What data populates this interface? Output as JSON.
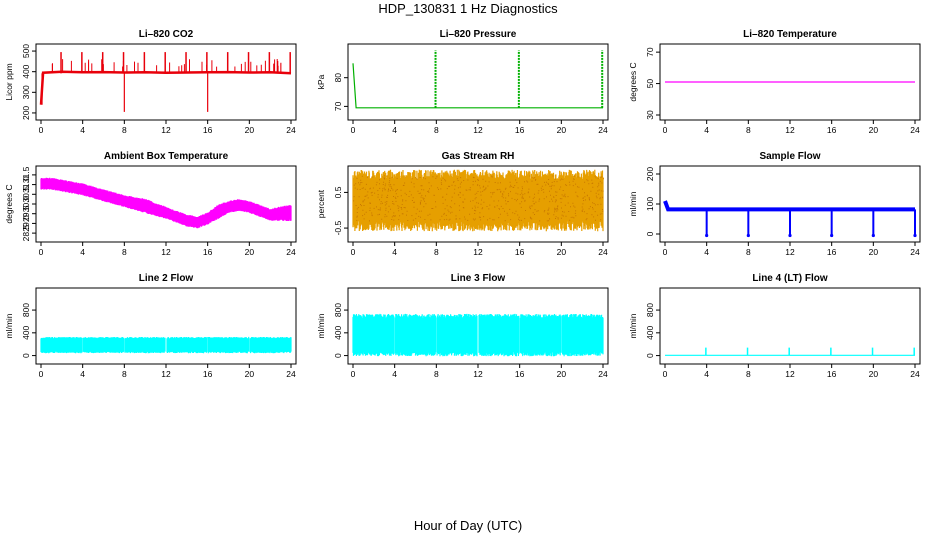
{
  "title": "HDP_130831  1 Hz Diagnostics",
  "xlabel": "Hour of Day (UTC)",
  "chart_data": [
    {
      "type": "line",
      "title": "Li–820 CO2",
      "ylabel": "Licor ppm",
      "color": "#e8000b",
      "xlim": [
        0,
        24
      ],
      "ylim": [
        190,
        510
      ],
      "xticks": [
        "0",
        "4",
        "8",
        "12",
        "16",
        "20",
        "24"
      ],
      "yticks": [
        "200",
        "300",
        "400",
        "500"
      ],
      "series": [
        {
          "x": [
            0,
            0.2,
            2,
            4,
            6,
            8,
            10,
            12,
            14,
            16,
            18,
            20,
            22,
            24
          ],
          "y": [
            240,
            395,
            400,
            397,
            398,
            396,
            397,
            395,
            396,
            397,
            398,
            396,
            397,
            392
          ]
        }
      ],
      "spikes_up": [
        2,
        4,
        6,
        8,
        10,
        12,
        14,
        16,
        18,
        20,
        22,
        24
      ],
      "spikes_down": [
        0.1,
        8,
        16
      ]
    },
    {
      "type": "line",
      "title": "Li–820 Pressure",
      "ylabel": "kPa",
      "color": "#00b000",
      "xlim": [
        0,
        24
      ],
      "ylim": [
        67,
        90
      ],
      "xticks": [
        "0",
        "4",
        "8",
        "12",
        "16",
        "20",
        "24"
      ],
      "yticks": [
        "70",
        "80"
      ],
      "series": [
        {
          "x": [
            0,
            0.3,
            24
          ],
          "y": [
            85,
            69.5,
            69.5
          ]
        }
      ],
      "spikes_up": [
        8,
        16,
        24
      ]
    },
    {
      "type": "line",
      "title": "Li–820 Temperature",
      "ylabel": "degrees C",
      "color": "#ff00ff",
      "xlim": [
        0,
        24
      ],
      "ylim": [
        30,
        72
      ],
      "xticks": [
        "0",
        "4",
        "8",
        "12",
        "16",
        "20",
        "24"
      ],
      "yticks": [
        "30",
        "50",
        "70"
      ],
      "series": [
        {
          "x": [
            0,
            24
          ],
          "y": [
            51,
            51
          ]
        }
      ]
    },
    {
      "type": "area",
      "title": "Ambient Box Temperature",
      "ylabel": "degrees C",
      "color": "#ff00ff",
      "xlim": [
        0,
        24
      ],
      "ylim": [
        28.3,
        31.7
      ],
      "xticks": [
        "0",
        "4",
        "8",
        "12",
        "16",
        "20",
        "24"
      ],
      "yticks": [
        "28.5",
        "29.0",
        "29.5",
        "30.0",
        "30.5",
        "31.0",
        "31.5"
      ],
      "series": [
        {
          "x": [
            0,
            1,
            2,
            4,
            6,
            8,
            10,
            12,
            14,
            15,
            16,
            17,
            18,
            19,
            20,
            22,
            24
          ],
          "upper": [
            31.3,
            31.3,
            31.2,
            31.0,
            30.7,
            30.4,
            30.2,
            29.8,
            29.4,
            29.3,
            29.5,
            29.9,
            30.1,
            30.2,
            30.1,
            29.7,
            29.9
          ],
          "lower": [
            30.8,
            30.8,
            30.7,
            30.5,
            30.2,
            29.9,
            29.6,
            29.3,
            28.9,
            28.8,
            29.0,
            29.3,
            29.6,
            29.7,
            29.6,
            29.2,
            29.2
          ]
        }
      ]
    },
    {
      "type": "area",
      "title": "Gas Stream RH",
      "ylabel": "percent",
      "color": "#e69f00",
      "xlim": [
        0,
        24
      ],
      "ylim": [
        -0.75,
        1.1
      ],
      "xticks": [
        "0",
        "4",
        "8",
        "12",
        "16",
        "20",
        "24"
      ],
      "yticks": [
        "-0.5",
        "0.5"
      ],
      "series": [
        {
          "x": [
            0,
            24
          ],
          "upper": [
            0.85,
            0.85
          ],
          "lower": [
            -0.3,
            -0.3
          ]
        }
      ]
    },
    {
      "type": "line",
      "title": "Sample Flow",
      "ylabel": "ml/min",
      "color": "#0000ff",
      "xlim": [
        0,
        24
      ],
      "ylim": [
        -10,
        210
      ],
      "xticks": [
        "0",
        "4",
        "8",
        "12",
        "16",
        "20",
        "24"
      ],
      "yticks": [
        "0",
        "100",
        "200"
      ],
      "series": [
        {
          "x": [
            0,
            0.3,
            24
          ],
          "y": [
            110,
            82,
            82
          ]
        }
      ],
      "spikes_down": [
        4,
        8,
        12,
        16,
        20,
        24
      ]
    },
    {
      "type": "area",
      "title": "Line 2 Flow",
      "ylabel": "ml/min",
      "color": "#00ffff",
      "xlim": [
        0,
        24
      ],
      "ylim": [
        -60,
        1100
      ],
      "xticks": [
        "0",
        "4",
        "8",
        "12",
        "16",
        "20",
        "24"
      ],
      "yticks": [
        "0",
        "400",
        "800"
      ],
      "series": [
        {
          "x": [
            0,
            24
          ],
          "upper": [
            300,
            300
          ],
          "lower": [
            70,
            70
          ]
        }
      ],
      "gaps": [
        4,
        8,
        12,
        16,
        20
      ]
    },
    {
      "type": "area",
      "title": "Line 3 Flow",
      "ylabel": "ml/min",
      "color": "#00ffff",
      "xlim": [
        0,
        24
      ],
      "ylim": [
        -60,
        1100
      ],
      "xticks": [
        "0",
        "4",
        "8",
        "12",
        "16",
        "20",
        "24"
      ],
      "yticks": [
        "0",
        "400",
        "800"
      ],
      "series": [
        {
          "x": [
            0,
            24
          ],
          "upper": [
            660,
            660
          ],
          "lower": [
            60,
            60
          ]
        }
      ],
      "gaps": [
        4,
        8,
        12,
        16,
        20
      ]
    },
    {
      "type": "line",
      "title": "Line 4 (LT) Flow",
      "ylabel": "ml/min",
      "color": "#00ffff",
      "xlim": [
        0,
        24
      ],
      "ylim": [
        -60,
        1100
      ],
      "xticks": [
        "0",
        "4",
        "8",
        "12",
        "16",
        "20",
        "24"
      ],
      "yticks": [
        "0",
        "400",
        "800"
      ],
      "series": [
        {
          "x": [
            0,
            24
          ],
          "y": [
            5,
            5
          ]
        }
      ],
      "spikes_up": [
        4,
        8,
        12,
        16,
        20,
        24
      ]
    }
  ]
}
